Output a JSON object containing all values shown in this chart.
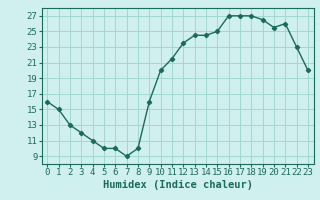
{
  "x": [
    0,
    1,
    2,
    3,
    4,
    5,
    6,
    7,
    8,
    9,
    10,
    11,
    12,
    13,
    14,
    15,
    16,
    17,
    18,
    19,
    20,
    21,
    22,
    23
  ],
  "y": [
    16,
    15,
    13,
    12,
    11,
    10,
    10,
    9,
    10,
    16,
    20,
    21.5,
    23.5,
    24.5,
    24.5,
    25,
    27,
    27,
    27,
    26.5,
    25.5,
    26,
    23,
    20
  ],
  "line_color": "#1a6b5a",
  "marker": "D",
  "marker_size": 2.2,
  "bg_color": "#cff0ee",
  "grid_color": "#a0d8d4",
  "xlabel": "Humidex (Indice chaleur)",
  "xlim": [
    -0.5,
    23.5
  ],
  "ylim": [
    8,
    28
  ],
  "yticks": [
    9,
    11,
    13,
    15,
    17,
    19,
    21,
    23,
    25,
    27
  ],
  "xticks": [
    0,
    1,
    2,
    3,
    4,
    5,
    6,
    7,
    8,
    9,
    10,
    11,
    12,
    13,
    14,
    15,
    16,
    17,
    18,
    19,
    20,
    21,
    22,
    23
  ],
  "xlabel_fontsize": 7.5,
  "tick_fontsize": 6.5,
  "line_width": 1.0
}
